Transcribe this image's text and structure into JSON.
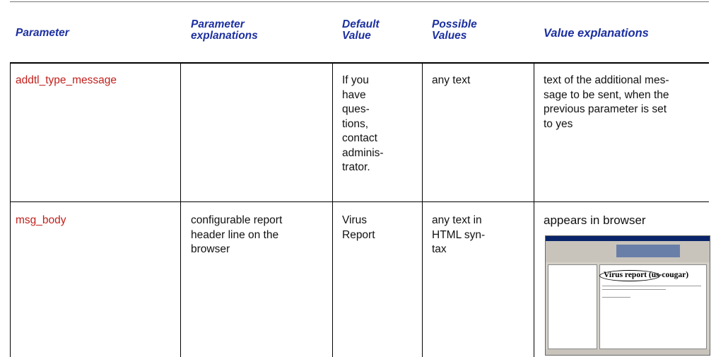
{
  "table": {
    "header": [
      "Parameter",
      "Parameter\nexplanations",
      "Default\nValue",
      "Possible\nValues",
      "Value explanations"
    ],
    "rows": [
      [
        "addtl_type_message",
        "",
        "If you\nhave\nques-\ntions,\ncontact\nadminis-\ntrator.",
        "any text",
        "text of the additional mes-\nsage to be sent, when the\nprevious parameter is set\nto yes"
      ],
      [
        "msg_body",
        "configurable report\nheader line on the\nbrowser",
        "Virus\nReport",
        "any text in\nHTML syn-\ntax",
        "appears in browser"
      ]
    ]
  },
  "screenshot": {
    "heading": "Virus report (us-cougar)"
  }
}
